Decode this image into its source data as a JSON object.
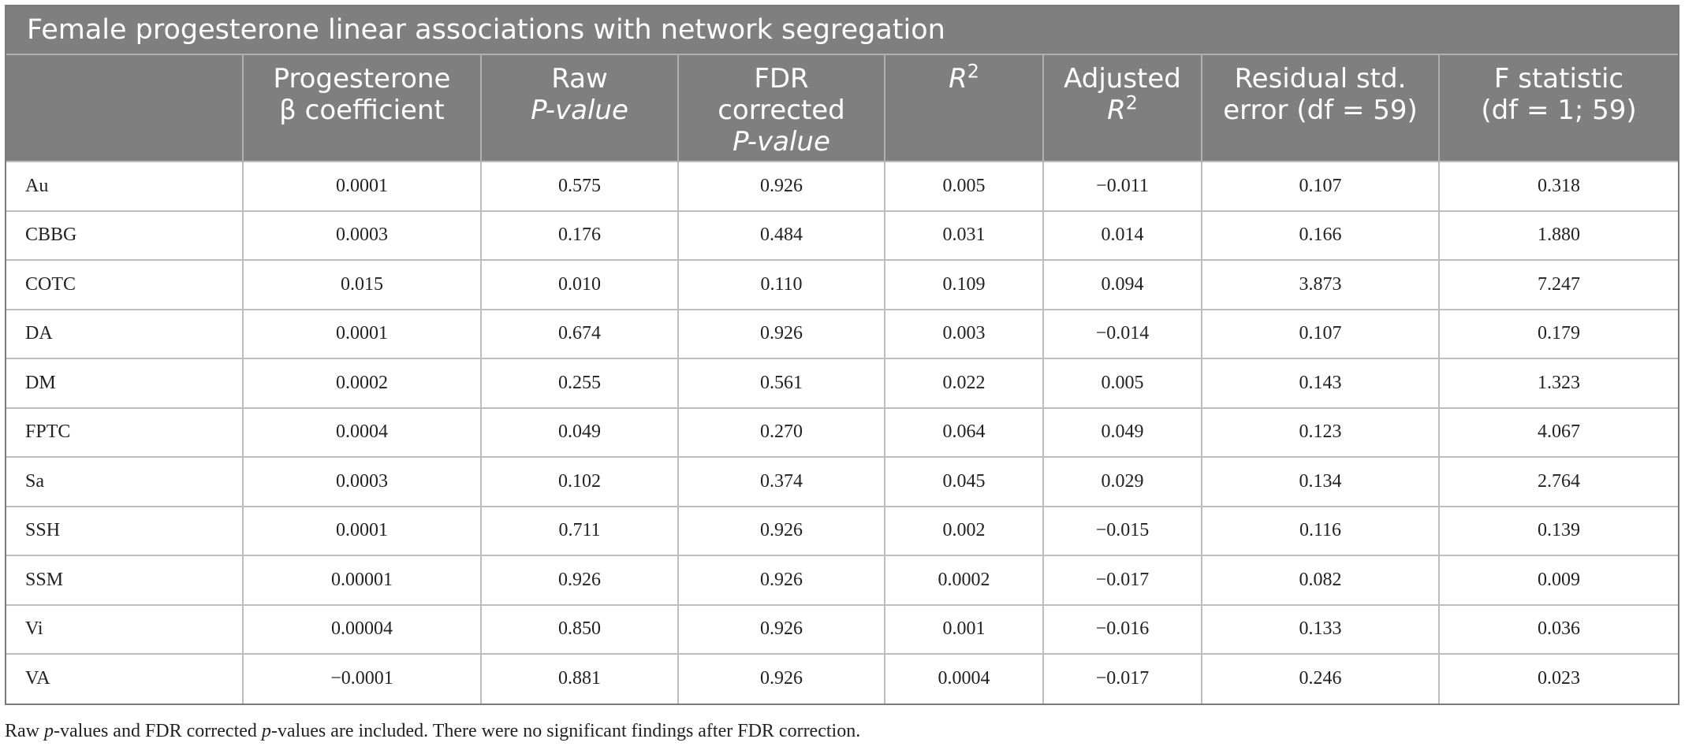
{
  "table": {
    "title": "Female progesterone linear associations with network segregation",
    "headers": [
      {
        "l1": "",
        "l2": "",
        "l3": ""
      },
      {
        "l1": "Progesterone",
        "l2": "β coefficient",
        "l3": ""
      },
      {
        "l1": "Raw",
        "l2": "P-value",
        "l3": ""
      },
      {
        "l1": "FDR",
        "l2": "corrected",
        "l3": "P-value"
      },
      {
        "l1": "R2",
        "l2": "",
        "l3": ""
      },
      {
        "l1": "Adjusted",
        "l2": "R2",
        "l3": ""
      },
      {
        "l1": "Residual std.",
        "l2": "error (df = 59)",
        "l3": ""
      },
      {
        "l1": "F statistic",
        "l2": "(df = 1; 59)",
        "l3": ""
      }
    ],
    "rows": [
      [
        "Au",
        "0.0001",
        "0.575",
        "0.926",
        "0.005",
        "−0.011",
        "0.107",
        "0.318"
      ],
      [
        "CBBG",
        "0.0003",
        "0.176",
        "0.484",
        "0.031",
        "0.014",
        "0.166",
        "1.880"
      ],
      [
        "COTC",
        "0.015",
        "0.010",
        "0.110",
        "0.109",
        "0.094",
        "3.873",
        "7.247"
      ],
      [
        "DA",
        "0.0001",
        "0.674",
        "0.926",
        "0.003",
        "−0.014",
        "0.107",
        "0.179"
      ],
      [
        "DM",
        "0.0002",
        "0.255",
        "0.561",
        "0.022",
        "0.005",
        "0.143",
        "1.323"
      ],
      [
        "FPTC",
        "0.0004",
        "0.049",
        "0.270",
        "0.064",
        "0.049",
        "0.123",
        "4.067"
      ],
      [
        "Sa",
        "0.0003",
        "0.102",
        "0.374",
        "0.045",
        "0.029",
        "0.134",
        "2.764"
      ],
      [
        "SSH",
        "0.0001",
        "0.711",
        "0.926",
        "0.002",
        "−0.015",
        "0.116",
        "0.139"
      ],
      [
        "SSM",
        "0.00001",
        "0.926",
        "0.926",
        "0.0002",
        "−0.017",
        "0.082",
        "0.009"
      ],
      [
        "Vi",
        "0.00004",
        "0.850",
        "0.926",
        "0.001",
        "−0.016",
        "0.133",
        "0.036"
      ],
      [
        "VA",
        "−0.0001",
        "0.881",
        "0.926",
        "0.0004",
        "−0.017",
        "0.246",
        "0.023"
      ]
    ],
    "footnote": "Raw p-values and FDR corrected p-values are included. There were no significant findings after FDR correction."
  },
  "colors": {
    "header_bg": "#7f7f7f",
    "header_text": "#ffffff",
    "grid": "#bdbdbd"
  }
}
